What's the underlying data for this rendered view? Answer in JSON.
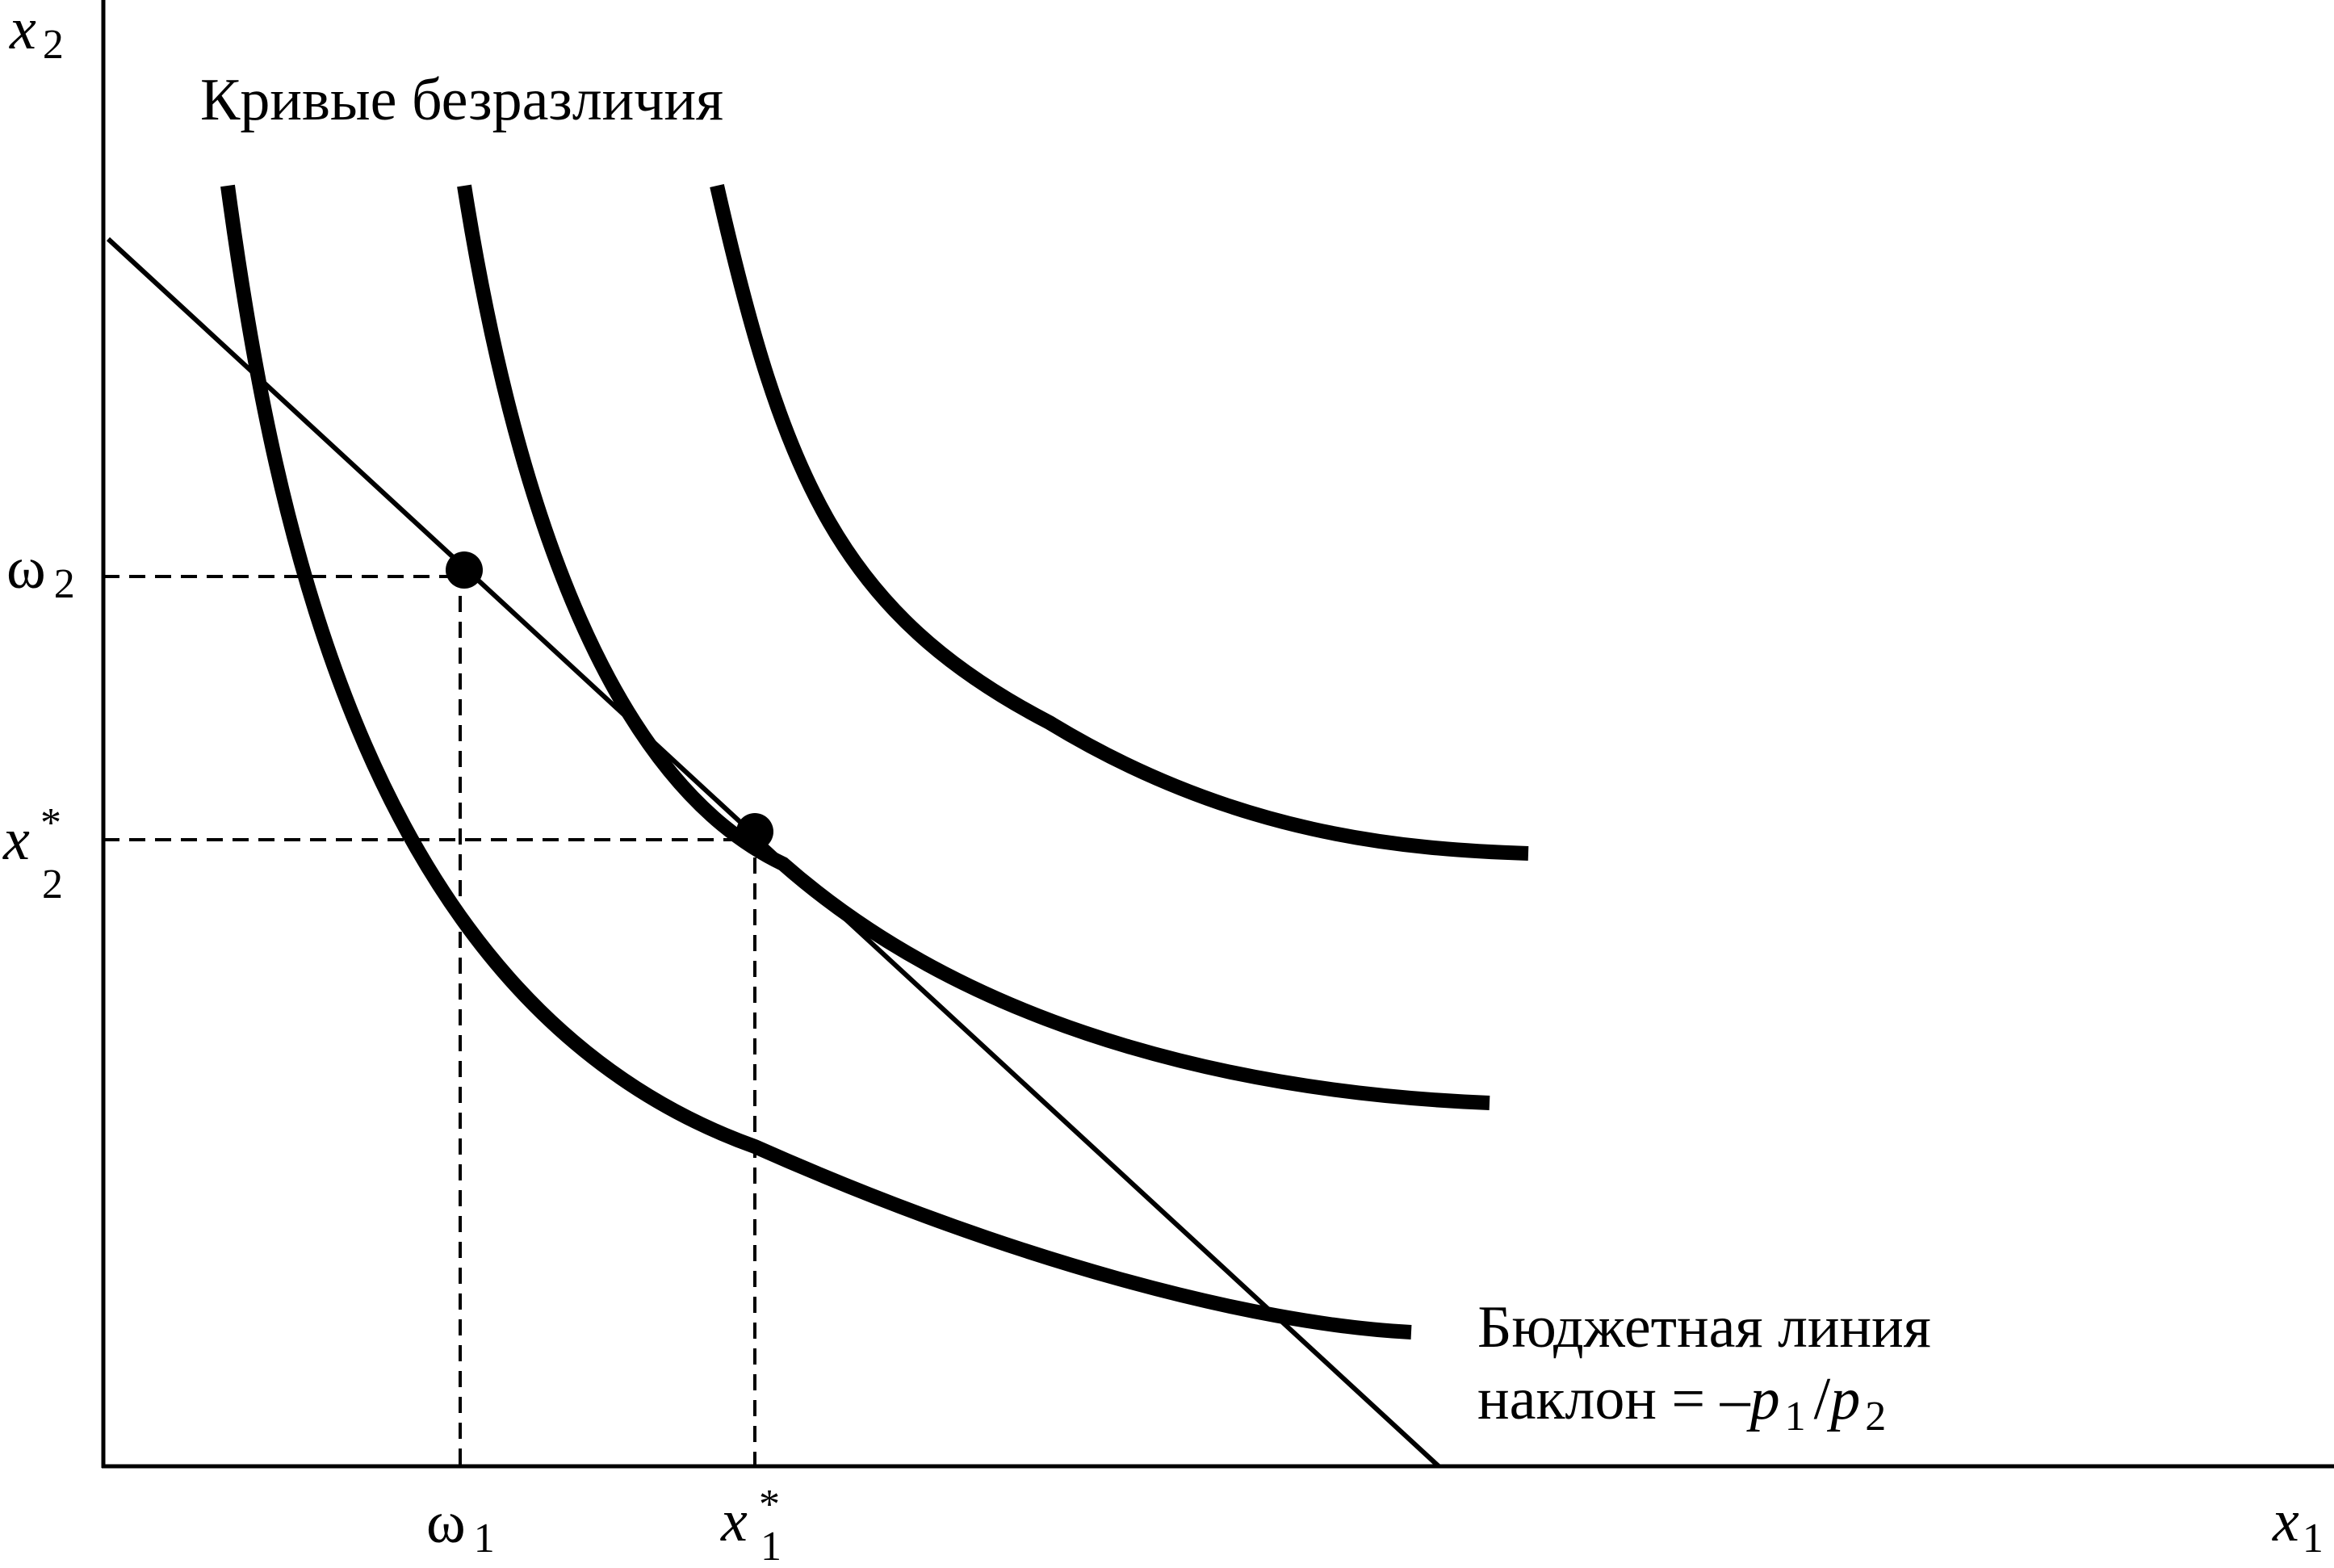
{
  "figure": {
    "axis_x_label": "x",
    "axis_x_sub": "1",
    "axis_y_label": "x",
    "axis_y_sub": "2",
    "indifference_label": "Кривые безразличия",
    "budget_label_line1": "Бюджетная линия",
    "budget_label_prefix": "наклон = –",
    "budget_p": "p",
    "budget_p1_sub": "1",
    "budget_slash": "/",
    "budget_p2_sub": "2",
    "tick_omega": "ω",
    "tick_omega1_sub": "1",
    "tick_omega2_sub": "2",
    "tick_x": "x",
    "tick_star": "*",
    "tick_x1_sub": "1",
    "tick_x2_sub": "2"
  },
  "colors": {
    "ink": "#000000",
    "background": "#ffffff"
  }
}
